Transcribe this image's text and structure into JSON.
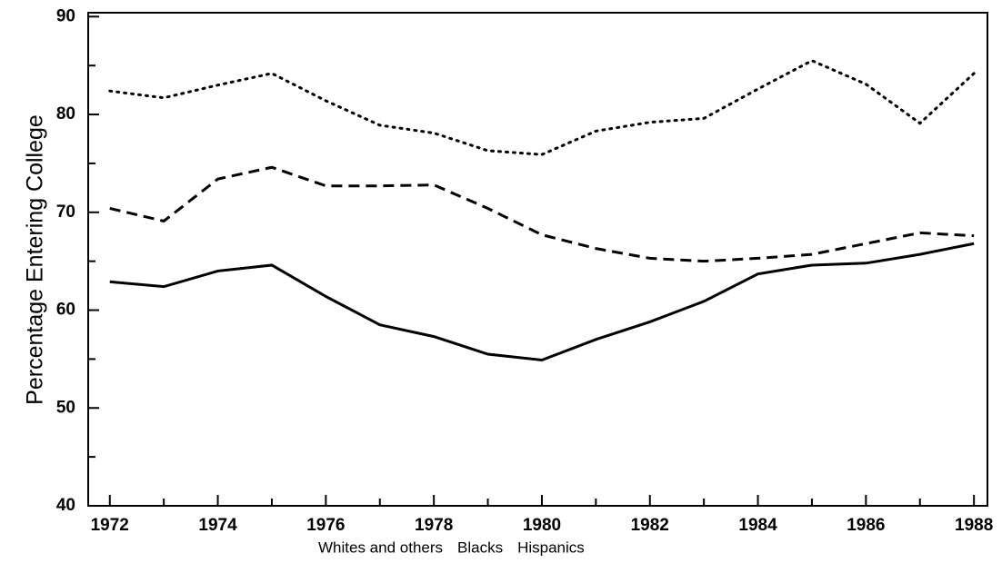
{
  "chart_data": {
    "type": "line",
    "ylabel": "Percentage Entering College",
    "x": [
      1972,
      1973,
      1974,
      1975,
      1976,
      1977,
      1978,
      1979,
      1980,
      1981,
      1982,
      1983,
      1984,
      1985,
      1986,
      1987,
      1988
    ],
    "series": [
      {
        "name": "Whites and others",
        "color": "#000000",
        "style": "solid",
        "values": [
          62.9,
          62.4,
          64.0,
          64.6,
          61.4,
          58.5,
          57.3,
          55.5,
          54.9,
          57.0,
          58.8,
          60.9,
          63.7,
          64.6,
          64.8,
          65.7,
          66.8
        ]
      },
      {
        "name": "Blacks",
        "color": "#000000",
        "style": "dashed",
        "values": [
          70.4,
          69.1,
          73.4,
          74.6,
          72.7,
          72.7,
          72.8,
          70.4,
          67.7,
          66.3,
          65.3,
          65.0,
          65.3,
          65.7,
          66.8,
          67.9,
          67.6
        ]
      },
      {
        "name": "Hispanics",
        "color": "#000000",
        "style": "dotted",
        "values": [
          82.4,
          81.7,
          83.0,
          84.2,
          81.4,
          78.9,
          78.1,
          76.3,
          75.9,
          78.3,
          79.2,
          79.6,
          82.6,
          85.5,
          83.1,
          79.1,
          84.2
        ]
      }
    ],
    "xlim": [
      1971.6,
      1988.25
    ],
    "ylim": [
      40,
      90.4
    ],
    "xticks": [
      1972,
      1974,
      1976,
      1978,
      1980,
      1982,
      1984,
      1986,
      1988
    ],
    "xticks_minor": [
      1973,
      1975,
      1977,
      1979,
      1981,
      1983,
      1985,
      1987
    ],
    "yticks": [
      40,
      50,
      60,
      70,
      80,
      90
    ],
    "yticks_minor": [
      45,
      55,
      65,
      75,
      85
    ],
    "grid": false
  }
}
